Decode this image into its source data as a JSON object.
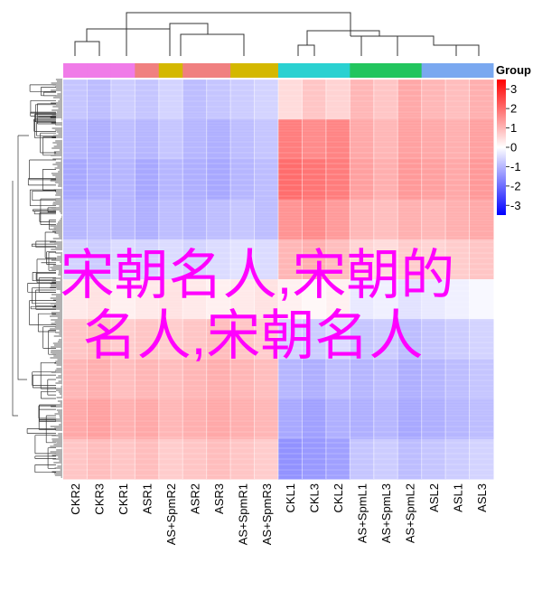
{
  "chart_data": {
    "type": "heatmap",
    "columns": [
      "CKR2",
      "CKR3",
      "CKR1",
      "ASR1",
      "AS+SpmR2",
      "ASR2",
      "ASR3",
      "AS+SpmR1",
      "AS+SpmR3",
      "CKL1",
      "CKL3",
      "CKL2",
      "AS+SpmL1",
      "AS+SpmL3",
      "AS+SpmL2",
      "ASL2",
      "ASL1",
      "ASL3"
    ],
    "group_colors": [
      "#f07be8",
      "#f07be8",
      "#f07be8",
      "#f08080",
      "#d4b800",
      "#f08080",
      "#f08080",
      "#d4b800",
      "#d4b800",
      "#2ad1d1",
      "#2ad1d1",
      "#2ad1d1",
      "#22c55e",
      "#22c55e",
      "#22c55e",
      "#7aa8f0",
      "#7aa8f0",
      "#7aa8f0"
    ],
    "values": [
      [
        -0.8,
        -0.9,
        -0.7,
        -0.8,
        -0.6,
        -0.9,
        -0.8,
        -0.7,
        -0.6,
        0.5,
        0.8,
        0.6,
        1.0,
        0.8,
        1.2,
        1.0,
        0.9,
        1.1
      ],
      [
        -1.0,
        -1.1,
        -0.9,
        -1.0,
        -0.8,
        -1.0,
        -1.1,
        -0.9,
        -0.8,
        1.8,
        1.6,
        1.7,
        1.2,
        1.0,
        1.3,
        1.2,
        1.1,
        1.3
      ],
      [
        -1.2,
        -1.1,
        -1.0,
        -1.2,
        -1.0,
        -1.1,
        -1.2,
        -1.0,
        -0.9,
        2.0,
        1.9,
        1.8,
        1.3,
        1.1,
        1.4,
        1.3,
        1.2,
        1.4
      ],
      [
        -1.0,
        -0.9,
        -1.0,
        -1.1,
        -0.9,
        -1.0,
        -0.9,
        -0.8,
        -0.9,
        1.5,
        1.6,
        1.4,
        1.0,
        0.9,
        1.1,
        1.0,
        1.1,
        1.2
      ],
      [
        -0.6,
        -0.7,
        -0.5,
        -0.6,
        -0.5,
        -0.6,
        -0.5,
        -0.4,
        -0.5,
        1.0,
        1.1,
        0.9,
        0.6,
        0.5,
        0.7,
        0.6,
        0.7,
        0.8
      ],
      [
        0.3,
        0.4,
        0.2,
        0.3,
        0.4,
        0.3,
        0.2,
        0.3,
        0.4,
        0.2,
        0.1,
        0.2,
        -0.3,
        -0.2,
        -0.4,
        -0.3,
        -0.2,
        -0.1
      ],
      [
        0.8,
        0.9,
        0.7,
        0.8,
        0.7,
        0.8,
        0.9,
        0.8,
        0.7,
        -0.6,
        -0.7,
        -0.5,
        -0.8,
        -0.7,
        -0.9,
        -0.8,
        -0.7,
        -0.6
      ],
      [
        1.0,
        1.1,
        0.9,
        1.0,
        0.9,
        1.0,
        1.1,
        1.0,
        0.9,
        -1.0,
        -1.1,
        -0.9,
        -1.0,
        -0.9,
        -1.1,
        -1.0,
        -0.9,
        -0.8
      ],
      [
        1.2,
        1.3,
        1.1,
        1.2,
        1.0,
        1.1,
        1.2,
        1.1,
        1.0,
        -1.2,
        -1.3,
        -1.1,
        -1.1,
        -1.0,
        -1.2,
        -1.1,
        -1.0,
        -0.9
      ],
      [
        0.8,
        0.9,
        0.8,
        0.9,
        0.7,
        0.8,
        0.9,
        0.8,
        0.7,
        -1.5,
        -1.4,
        -1.3,
        -0.8,
        -0.7,
        -0.9,
        -0.8,
        -0.7,
        -0.6
      ]
    ],
    "legend_title": "Group",
    "key_lim": [
      -3.5,
      3.5
    ],
    "key_ticks": [
      3,
      2,
      1,
      0,
      -1,
      -2,
      -3
    ],
    "color_scale": {
      "low": "#0000ff",
      "mid": "#ffffff",
      "high": "#ff0000"
    }
  },
  "overlay_text": [
    "宋朝名人,宋朝的",
    "名人,宋朝名人"
  ]
}
